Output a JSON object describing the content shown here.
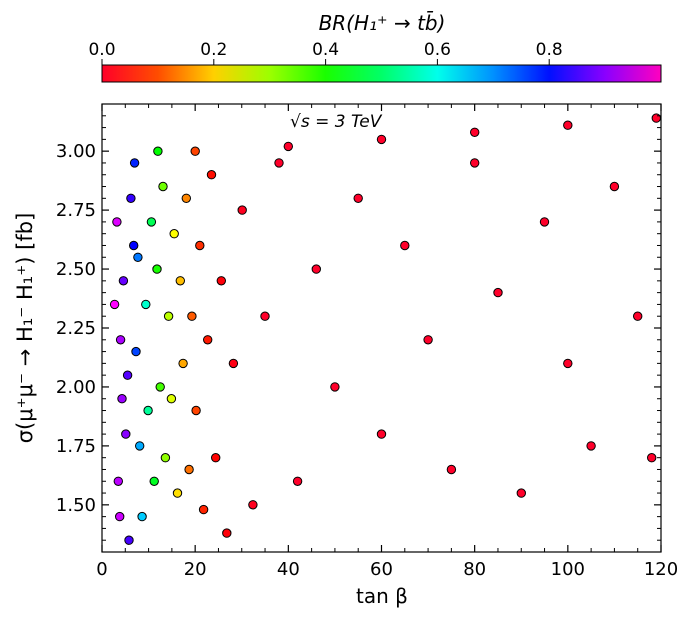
{
  "chart_data": {
    "type": "scatter",
    "colorbar": {
      "label": "BR(H₁⁺ → tb̄)",
      "ticks": [
        "0.0",
        "0.2",
        "0.4",
        "0.6",
        "0.8"
      ],
      "tick_values": [
        0.0,
        0.2,
        0.4,
        0.6,
        0.8
      ],
      "range": [
        0.0,
        1.0
      ],
      "colormap": "gist_rainbow",
      "location": "top"
    },
    "annotation": "√s = 3 TeV",
    "xlabel": "tan β",
    "ylabel": "σ(μ⁺μ⁻ → H₁⁻ H₁⁺)  [fb]",
    "xlim": [
      0,
      120
    ],
    "ylim": [
      1.3,
      3.2
    ],
    "xticks": [
      "0",
      "20",
      "40",
      "60",
      "80",
      "100",
      "120"
    ],
    "yticks": [
      "1.50",
      "1.75",
      "2.00",
      "2.25",
      "2.50",
      "2.75",
      "3.00"
    ],
    "grid": false,
    "trend": {
      "upper_edge_tanb": [
        5,
        10,
        15,
        20,
        40,
        60,
        80,
        100,
        120
      ],
      "upper_edge_sigma": [
        2.9,
        2.98,
        3.0,
        3.0,
        3.02,
        3.05,
        3.08,
        3.11,
        3.14
      ],
      "br_vs_tanb": [
        [
          3,
          0.93
        ],
        [
          6,
          0.82
        ],
        [
          9,
          0.68
        ],
        [
          12,
          0.52
        ],
        [
          15,
          0.35
        ],
        [
          18,
          0.22
        ],
        [
          22,
          0.1
        ],
        [
          27,
          0.04
        ],
        [
          35,
          0.0
        ],
        [
          120,
          0.0
        ]
      ]
    },
    "points": [
      [
        3.2,
        2.7,
        0.93
      ],
      [
        4.0,
        2.2,
        0.9
      ],
      [
        5.1,
        1.8,
        0.88
      ],
      [
        3.8,
        1.45,
        0.92
      ],
      [
        4.6,
        2.45,
        0.86
      ],
      [
        5.5,
        2.05,
        0.85
      ],
      [
        3.5,
        1.6,
        0.91
      ],
      [
        6.2,
        2.8,
        0.83
      ],
      [
        4.3,
        1.95,
        0.89
      ],
      [
        5.8,
        1.35,
        0.84
      ],
      [
        2.7,
        2.35,
        0.95
      ],
      [
        6.8,
        2.6,
        0.8
      ],
      [
        7.3,
        2.15,
        0.76
      ],
      [
        8.1,
        1.75,
        0.7
      ],
      [
        7.7,
        2.55,
        0.73
      ],
      [
        8.6,
        1.45,
        0.68
      ],
      [
        9.4,
        2.35,
        0.62
      ],
      [
        9.9,
        1.9,
        0.59
      ],
      [
        10.6,
        2.7,
        0.55
      ],
      [
        11.2,
        1.6,
        0.52
      ],
      [
        11.8,
        2.5,
        0.48
      ],
      [
        12.5,
        2.0,
        0.44
      ],
      [
        13.1,
        2.85,
        0.4
      ],
      [
        13.6,
        1.7,
        0.37
      ],
      [
        14.3,
        2.3,
        0.33
      ],
      [
        14.9,
        1.95,
        0.3
      ],
      [
        15.5,
        2.65,
        0.27
      ],
      [
        16.2,
        1.55,
        0.24
      ],
      [
        16.8,
        2.45,
        0.21
      ],
      [
        17.4,
        2.1,
        0.19
      ],
      [
        18.1,
        2.8,
        0.16
      ],
      [
        18.7,
        1.65,
        0.14
      ],
      [
        19.3,
        2.3,
        0.12
      ],
      [
        20.2,
        1.9,
        0.1
      ],
      [
        21.0,
        2.6,
        0.08
      ],
      [
        21.8,
        1.48,
        0.07
      ],
      [
        22.7,
        2.2,
        0.06
      ],
      [
        23.5,
        2.9,
        0.05
      ],
      [
        24.4,
        1.7,
        0.04
      ],
      [
        25.6,
        2.45,
        0.03
      ],
      [
        26.8,
        1.38,
        0.03
      ],
      [
        28.2,
        2.1,
        0.02
      ],
      [
        30.1,
        2.75,
        0.01
      ],
      [
        32.4,
        1.5,
        0.01
      ],
      [
        35.0,
        2.3,
        0.0
      ],
      [
        38.0,
        2.95,
        0.0
      ],
      [
        42.0,
        1.6,
        0.0
      ],
      [
        46.0,
        2.5,
        0.0
      ],
      [
        50.0,
        2.0,
        0.0
      ],
      [
        55.0,
        2.8,
        0.0
      ],
      [
        60.0,
        1.8,
        0.0
      ],
      [
        65.0,
        2.6,
        0.0
      ],
      [
        70.0,
        2.2,
        0.0
      ],
      [
        75.0,
        1.65,
        0.0
      ],
      [
        80.0,
        2.95,
        0.0
      ],
      [
        85.0,
        2.4,
        0.0
      ],
      [
        90.0,
        1.55,
        0.0
      ],
      [
        95.0,
        2.7,
        0.0
      ],
      [
        100.0,
        2.1,
        0.0
      ],
      [
        105.0,
        1.75,
        0.0
      ],
      [
        110.0,
        2.85,
        0.0
      ],
      [
        115.0,
        2.3,
        0.0
      ],
      [
        118.0,
        1.7,
        0.0
      ],
      [
        7.0,
        2.95,
        0.78
      ],
      [
        12.0,
        3.0,
        0.5
      ],
      [
        20.0,
        3.0,
        0.1
      ],
      [
        40.0,
        3.02,
        0.0
      ],
      [
        60.0,
        3.05,
        0.0
      ],
      [
        80.0,
        3.08,
        0.0
      ],
      [
        100.0,
        3.11,
        0.0
      ],
      [
        119.0,
        3.14,
        0.0
      ]
    ]
  }
}
